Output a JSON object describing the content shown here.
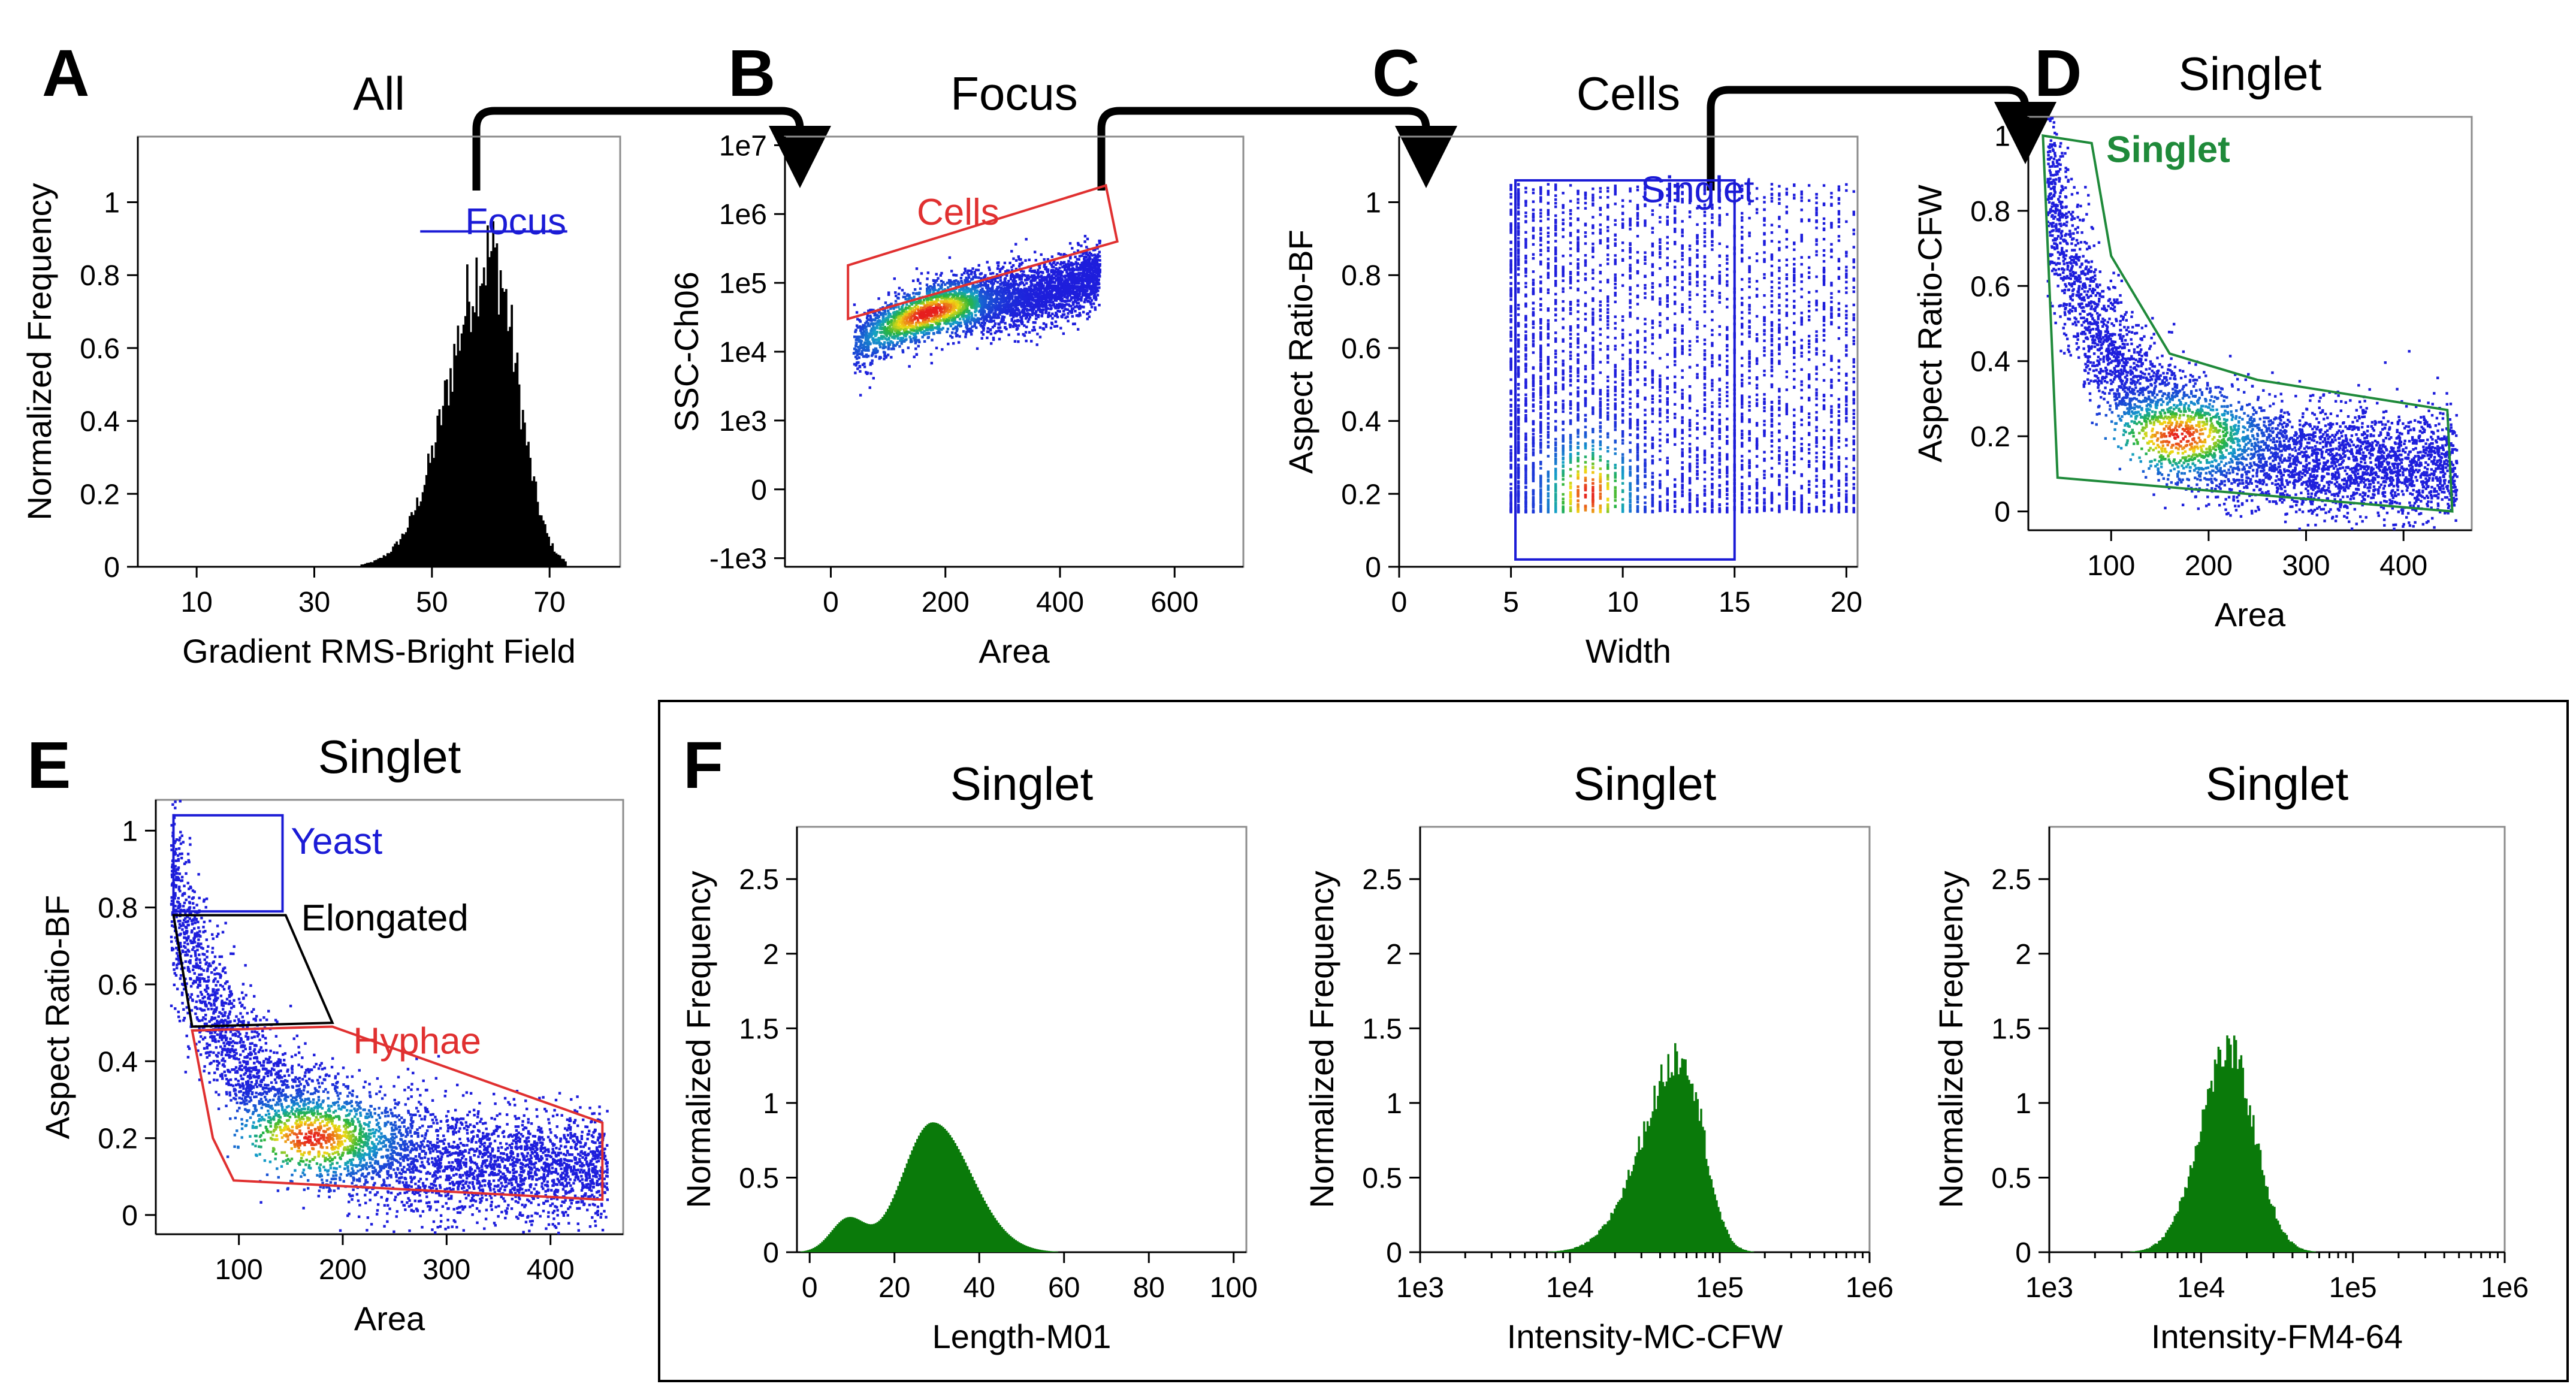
{
  "colors": {
    "blue": "#1b1bd6",
    "red": "#e03030",
    "green": "#1f8a3a",
    "black": "#000000",
    "hist": "#0a7a0a",
    "frame": "#8c8c8c"
  },
  "panel_labels": [
    "A",
    "B",
    "C",
    "D",
    "E",
    "F"
  ],
  "chart_data": [
    {
      "id": "A",
      "type": "bar",
      "title": "All",
      "xlabel": "Gradient RMS-Bright Field",
      "ylabel": "Normalized Frequency",
      "xlim": [
        0,
        82
      ],
      "ylim": [
        0,
        1.18
      ],
      "xticks": [
        10,
        30,
        50,
        70
      ],
      "yticks": [
        0,
        0.2,
        0.4,
        0.6,
        0.8,
        1
      ],
      "ytick_labels": [
        "0",
        "0.2",
        "0.4",
        "0.6",
        "0.8",
        "1"
      ],
      "distribution": {
        "peak_x": 60,
        "peak_y": 0.92,
        "sigma_left": 7,
        "sigma_right": 4.5,
        "start": 38,
        "end": 73
      },
      "gates": [
        {
          "name": "Focus",
          "color": "#1b1bd6",
          "range": [
            48,
            73
          ],
          "level": 0.92
        }
      ]
    },
    {
      "id": "B",
      "type": "scatter",
      "title": "Focus",
      "xlabel": "Area",
      "ylabel": "SSC-Ch06",
      "xlim": [
        -80,
        720
      ],
      "ylim": [
        -1000,
        10000000
      ],
      "yscale": "biexponential",
      "xticks": [
        0,
        200,
        400,
        600
      ],
      "yticks": [
        -1000,
        0,
        1000,
        10000,
        100000,
        1000000,
        10000000
      ],
      "ytick_labels": [
        "-1e3",
        "0",
        "1e3",
        "1e4",
        "1e5",
        "1e6",
        "1e7"
      ],
      "gates": [
        {
          "name": "Cells",
          "color": "#e03030",
          "vertices": [
            [
              30,
              30000
            ],
            [
              30,
              180000
            ],
            [
              480,
              2600000
            ],
            [
              500,
              400000
            ]
          ]
        }
      ]
    },
    {
      "id": "C",
      "type": "scatter",
      "title": "Cells",
      "xlabel": "Width",
      "ylabel": "Aspect Ratio-BF",
      "xlim": [
        0,
        20.5
      ],
      "ylim": [
        0,
        1.18
      ],
      "xticks": [
        0,
        5,
        10,
        15,
        20
      ],
      "yticks": [
        0,
        0.2,
        0.4,
        0.6,
        0.8,
        1
      ],
      "ytick_labels": [
        "0",
        "0.2",
        "0.4",
        "0.6",
        "0.8",
        "1"
      ],
      "gates": [
        {
          "name": "Singlet",
          "color": "#1b1bd6",
          "rect": [
            5.2,
            0.02,
            15,
            1.06
          ]
        }
      ]
    },
    {
      "id": "D",
      "type": "scatter",
      "title": "Singlet",
      "xlabel": "Area",
      "ylabel": "Aspect Ratio-CFW",
      "xlim": [
        15,
        470
      ],
      "ylim": [
        -0.05,
        1.05
      ],
      "xticks": [
        100,
        200,
        300,
        400
      ],
      "yticks": [
        0,
        0.2,
        0.4,
        0.6,
        0.8,
        1
      ],
      "ytick_labels": [
        "0",
        "0.2",
        "0.4",
        "0.6",
        "0.8",
        "1"
      ],
      "gates": [
        {
          "name": "Singlet",
          "color": "#1f8a3a",
          "vertices": [
            [
              30,
              1
            ],
            [
              80,
              0.98
            ],
            [
              100,
              0.68
            ],
            [
              160,
              0.42
            ],
            [
              250,
              0.35
            ],
            [
              445,
              0.27
            ],
            [
              450,
              0.0
            ],
            [
              45,
              0.09
            ]
          ]
        }
      ]
    },
    {
      "id": "E",
      "type": "scatter",
      "title": "Singlet",
      "xlabel": "Area",
      "ylabel": "Aspect Ratio-BF",
      "xlim": [
        20,
        470
      ],
      "ylim": [
        -0.05,
        1.08
      ],
      "xticks": [
        100,
        200,
        300,
        400
      ],
      "yticks": [
        0,
        0.2,
        0.4,
        0.6,
        0.8,
        1
      ],
      "ytick_labels": [
        "0",
        "0.2",
        "0.4",
        "0.6",
        "0.8",
        "1"
      ],
      "gates": [
        {
          "name": "Yeast",
          "color": "#1b1bd6",
          "vertices": [
            [
              37,
              1.04
            ],
            [
              142,
              1.04
            ],
            [
              142,
              0.79
            ],
            [
              37,
              0.79
            ]
          ]
        },
        {
          "name": "Elongated",
          "color": "#000000",
          "vertices": [
            [
              37,
              0.78
            ],
            [
              145,
              0.78
            ],
            [
              190,
              0.5
            ],
            [
              55,
              0.49
            ]
          ]
        },
        {
          "name": "Hyphae",
          "color": "#e03030",
          "vertices": [
            [
              55,
              0.48
            ],
            [
              190,
              0.49
            ],
            [
              450,
              0.24
            ],
            [
              450,
              0.04
            ],
            [
              95,
              0.09
            ],
            [
              75,
              0.2
            ]
          ]
        }
      ]
    },
    {
      "id": "F1",
      "type": "bar",
      "title": "Singlet",
      "xlabel": "Length-M01",
      "ylabel": "Normalized Frequency",
      "xlim": [
        -3,
        103
      ],
      "ylim": [
        0,
        2.85
      ],
      "xticks": [
        0,
        20,
        40,
        60,
        80,
        100
      ],
      "xtick_labels": [
        "0",
        "20",
        "40",
        "60",
        "80",
        "100"
      ],
      "yticks": [
        0,
        0.5,
        1,
        1.5,
        2,
        2.5
      ],
      "ytick_labels": [
        "0",
        "0.5",
        "1",
        "1.5",
        "2",
        "2.5"
      ],
      "distribution": {
        "peak_x": 29,
        "peak_y": 0.87,
        "sigma_left": 7,
        "sigma_right": 9,
        "shoulder": [
          9,
          0.22,
          4
        ]
      }
    },
    {
      "id": "F2",
      "type": "bar",
      "title": "Singlet",
      "xlabel": "Intensity-MC-CFW",
      "ylabel": "Normalized Frequency",
      "xlim": [
        3,
        6
      ],
      "xscale": "log",
      "ylim": [
        0,
        2.85
      ],
      "xticks": [
        3,
        4,
        5,
        6
      ],
      "xtick_labels": [
        "1e3",
        "1e4",
        "1e5",
        "1e6"
      ],
      "yticks": [
        0,
        0.5,
        1,
        1.5,
        2,
        2.5
      ],
      "ytick_labels": [
        "0",
        "0.5",
        "1",
        "1.5",
        "2",
        "2.5"
      ],
      "distribution": {
        "peak_x": 4.75,
        "peak_y": 1.35,
        "sigma_left": 0.26,
        "sigma_right": 0.14
      }
    },
    {
      "id": "F3",
      "type": "bar",
      "title": "Singlet",
      "xlabel": "Intensity-FM4-64",
      "ylabel": "Normalized Frequency",
      "xlim": [
        3,
        6
      ],
      "xscale": "log",
      "ylim": [
        0,
        2.85
      ],
      "xticks": [
        3,
        4,
        5,
        6
      ],
      "xtick_labels": [
        "1e3",
        "1e4",
        "1e5",
        "1e6"
      ],
      "yticks": [
        0,
        0.5,
        1,
        1.5,
        2,
        2.5
      ],
      "ytick_labels": [
        "0",
        "0.5",
        "1",
        "1.5",
        "2",
        "2.5"
      ],
      "distribution": {
        "peak_x": 4.18,
        "peak_y": 1.38,
        "sigma_left": 0.19,
        "sigma_right": 0.17
      }
    }
  ]
}
